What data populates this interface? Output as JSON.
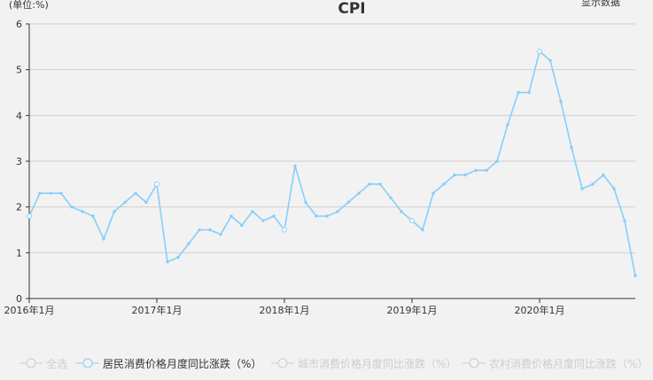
{
  "chart_data": {
    "type": "line",
    "title": "CPI",
    "ylabel": "(单位:%)",
    "ylim": [
      0,
      6
    ],
    "yticks": [
      "0",
      "1",
      "2",
      "3",
      "4",
      "5",
      "6"
    ],
    "xtick_labels": [
      "2016年1月",
      "2017年1月",
      "2018年1月",
      "2019年1月",
      "2020年1月"
    ],
    "x": [
      "2016-01",
      "2016-02",
      "2016-03",
      "2016-04",
      "2016-05",
      "2016-06",
      "2016-07",
      "2016-08",
      "2016-09",
      "2016-10",
      "2016-11",
      "2016-12",
      "2017-01",
      "2017-02",
      "2017-03",
      "2017-04",
      "2017-05",
      "2017-06",
      "2017-07",
      "2017-08",
      "2017-09",
      "2017-10",
      "2017-11",
      "2017-12",
      "2018-01",
      "2018-02",
      "2018-03",
      "2018-04",
      "2018-05",
      "2018-06",
      "2018-07",
      "2018-08",
      "2018-09",
      "2018-10",
      "2018-11",
      "2018-12",
      "2019-01",
      "2019-02",
      "2019-03",
      "2019-04",
      "2019-05",
      "2019-06",
      "2019-07",
      "2019-08",
      "2019-09",
      "2019-10",
      "2019-11",
      "2019-12",
      "2020-01",
      "2020-02",
      "2020-03",
      "2020-04",
      "2020-05",
      "2020-06",
      "2020-07",
      "2020-08",
      "2020-09",
      "2020-10"
    ],
    "series": [
      {
        "name": "居民消费价格月度同比涨跌（%）",
        "color": "#87cefa",
        "values": [
          1.8,
          2.3,
          2.3,
          2.3,
          2.0,
          1.9,
          1.8,
          1.3,
          1.9,
          2.1,
          2.3,
          2.1,
          2.5,
          0.8,
          0.9,
          1.2,
          1.5,
          1.5,
          1.4,
          1.8,
          1.6,
          1.9,
          1.7,
          1.8,
          1.5,
          2.9,
          2.1,
          1.8,
          1.8,
          1.9,
          2.1,
          2.3,
          2.5,
          2.5,
          2.2,
          1.9,
          1.7,
          1.5,
          2.3,
          2.5,
          2.7,
          2.7,
          2.8,
          2.8,
          3.0,
          3.8,
          4.5,
          4.5,
          5.4,
          5.2,
          4.3,
          3.3,
          2.4,
          2.5,
          2.7,
          2.4,
          1.7,
          0.5
        ]
      }
    ],
    "grid": true
  },
  "toolbox_label": "显示数据",
  "legend": [
    {
      "label": "全选",
      "active": false
    },
    {
      "label": "居民消费价格月度同比涨跌（%）",
      "active": true
    },
    {
      "label": "城市消费价格月度同比涨跌（%）",
      "active": false
    },
    {
      "label": "农村消费价格月度同比涨跌（%）",
      "active": false
    }
  ]
}
